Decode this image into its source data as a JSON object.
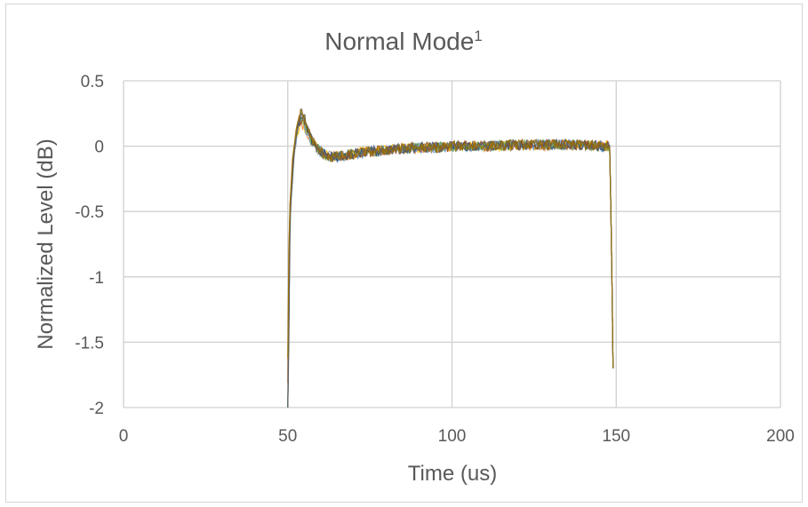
{
  "chart_data": {
    "type": "line",
    "title": "Normal Mode",
    "title_superscript": "1",
    "xlabel": "Time (us)",
    "ylabel": "Normalized Level (dB)",
    "xlim": [
      0,
      200
    ],
    "ylim": [
      -2,
      0.5
    ],
    "x_ticks": [
      0,
      50,
      100,
      150,
      200
    ],
    "y_ticks": [
      0.5,
      0,
      -0.5,
      -1,
      -1.5,
      -2
    ],
    "x_tick_labels": [
      "0",
      "50",
      "100",
      "150",
      "200"
    ],
    "y_tick_labels": [
      "0.5",
      "0",
      "-0.5",
      "-1",
      "-1.5",
      "-2"
    ],
    "grid": true,
    "legend": "none",
    "series_count": 10,
    "colors": [
      "#4472C4",
      "#ED7D31",
      "#A5A5A5",
      "#FFC000",
      "#5B9BD5",
      "#70AD47",
      "#264478",
      "#9E480E",
      "#636363",
      "#997300"
    ],
    "envelope": {
      "x": [
        50,
        50.6,
        51.5,
        52.5,
        53.5,
        54.5,
        55.5,
        57,
        59,
        61,
        63,
        65,
        68,
        72,
        76,
        80,
        85,
        90,
        95,
        100,
        110,
        120,
        130,
        140,
        145,
        148,
        148.6,
        149.2
      ],
      "y": [
        -2,
        -0.55,
        -0.15,
        0.08,
        0.2,
        0.22,
        0.15,
        0.06,
        -0.02,
        -0.06,
        -0.08,
        -0.08,
        -0.07,
        -0.05,
        -0.04,
        -0.03,
        -0.02,
        -0.01,
        -0.01,
        0,
        0,
        0.01,
        0.01,
        0.01,
        0,
        0,
        -0.8,
        -2
      ]
    },
    "noise_amplitude": 0.04
  }
}
